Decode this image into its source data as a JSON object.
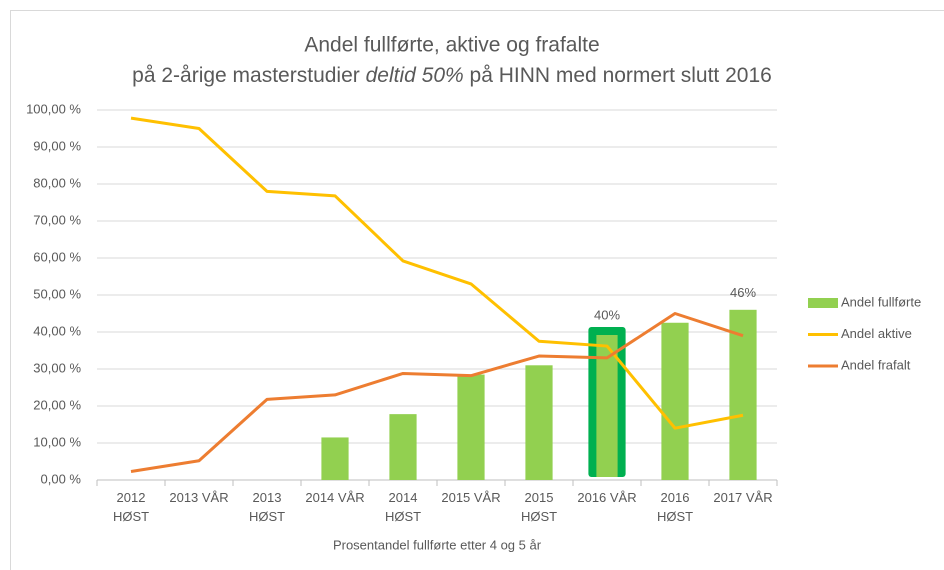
{
  "chart_data": {
    "type": "bar-line",
    "title": {
      "line1": "Andel fullførte, aktive og frafalte",
      "line2": [
        "på 2-årige masterstudier ",
        "deltid 50%",
        " på HINN med normert slutt 2016"
      ]
    },
    "x_label": "Prosentandel fullførte etter 4 og 5 år",
    "categories": [
      [
        "2012",
        "HØST"
      ],
      [
        "2013 VÅR"
      ],
      [
        "2013",
        "HØST"
      ],
      [
        "2014 VÅR"
      ],
      [
        "2014",
        "HØST"
      ],
      [
        "2015 VÅR"
      ],
      [
        "2015",
        "HØST"
      ],
      [
        "2016 VÅR"
      ],
      [
        "2016",
        "HØST"
      ],
      [
        "2017 VÅR"
      ]
    ],
    "ylim": [
      0,
      100
    ],
    "yticks": [
      {
        "value": 0,
        "label": "0,00 %"
      },
      {
        "value": 10,
        "label": "10,00 %"
      },
      {
        "value": 20,
        "label": "20,00 %"
      },
      {
        "value": 30,
        "label": "30,00 %"
      },
      {
        "value": 40,
        "label": "40,00 %"
      },
      {
        "value": 50,
        "label": "50,00 %"
      },
      {
        "value": 60,
        "label": "60,00 %"
      },
      {
        "value": 70,
        "label": "70,00 %"
      },
      {
        "value": 80,
        "label": "80,00 %"
      },
      {
        "value": 90,
        "label": "90,00 %"
      },
      {
        "value": 100,
        "label": "100,00 %"
      }
    ],
    "grid": true,
    "legend": "right",
    "highlight": {
      "index": 7,
      "color": "#00b050"
    },
    "series": [
      {
        "name": "Andel fullførte",
        "kind": "bar",
        "color": "#92d050",
        "values": [
          null,
          null,
          null,
          11.5,
          17.8,
          28.5,
          31,
          40,
          42.5,
          46
        ],
        "value_labels": [
          null,
          null,
          null,
          null,
          null,
          null,
          null,
          "40%",
          null,
          "46%"
        ]
      },
      {
        "name": "Andel aktive",
        "kind": "line",
        "color": "#ffc000",
        "values": [
          97.8,
          95,
          78,
          76.8,
          59.2,
          53,
          37.5,
          36.2,
          14,
          17.5
        ]
      },
      {
        "name": "Andel frafalt",
        "kind": "line",
        "color": "#ed7d31",
        "values": [
          2.3,
          5.2,
          21.8,
          23,
          28.8,
          28.2,
          33.5,
          33,
          45,
          39
        ]
      }
    ]
  }
}
